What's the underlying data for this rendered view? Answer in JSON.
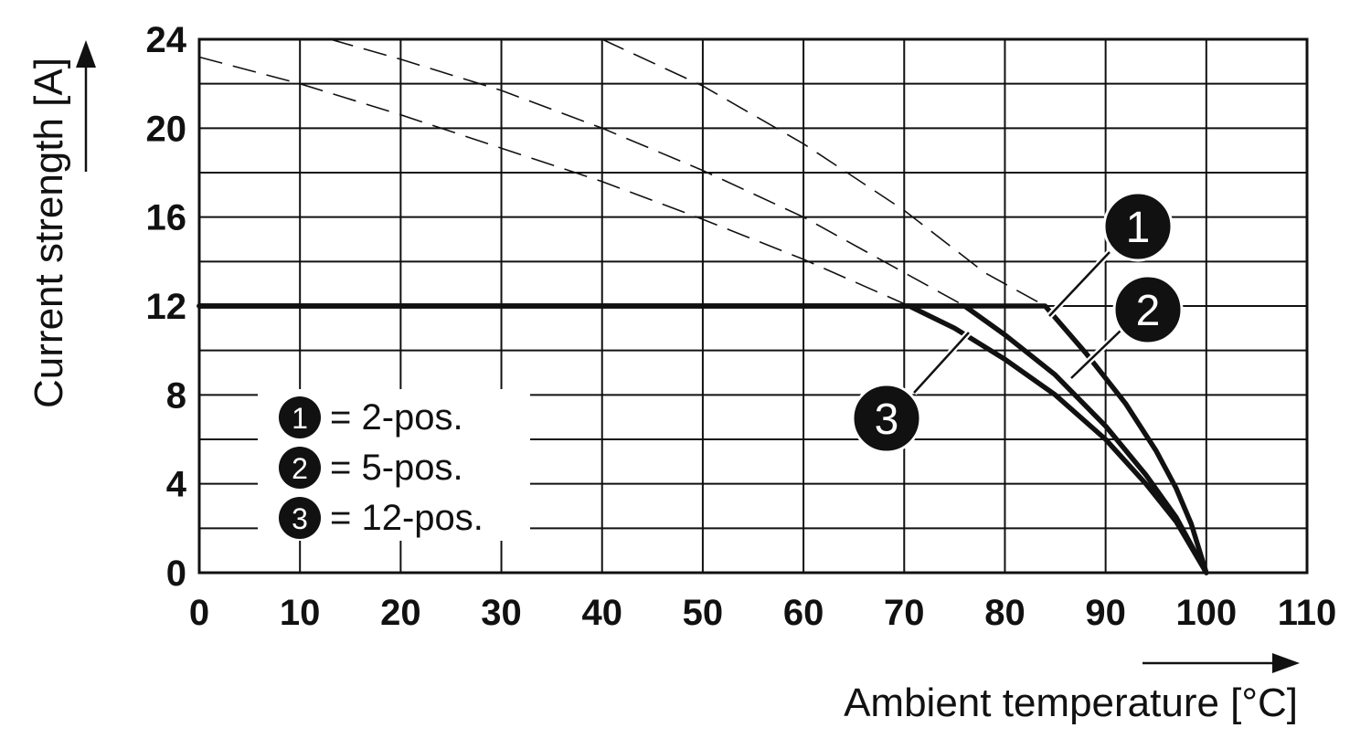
{
  "chart_data": {
    "type": "line",
    "xlabel": "Ambient temperature [°C]",
    "ylabel": "Current strength [A]",
    "xlim": [
      0,
      110
    ],
    "ylim": [
      0,
      24
    ],
    "x_ticks": [
      0,
      10,
      20,
      30,
      40,
      50,
      60,
      70,
      80,
      90,
      100,
      110
    ],
    "y_ticks": [
      0,
      4,
      8,
      12,
      16,
      20,
      24
    ],
    "grid": true,
    "legend": {
      "placement": "bottom-left",
      "entries": [
        {
          "marker": "1",
          "text": "= 2-pos."
        },
        {
          "marker": "2",
          "text": "= 5-pos."
        },
        {
          "marker": "3",
          "text": "= 12-pos."
        }
      ]
    },
    "series": [
      {
        "marker": "1",
        "solid": [
          [
            0,
            12
          ],
          [
            84,
            12
          ],
          [
            88,
            9.9
          ],
          [
            92,
            7.6
          ],
          [
            95,
            5.5
          ],
          [
            97,
            3.8
          ],
          [
            98.5,
            2.2
          ],
          [
            100,
            0
          ]
        ],
        "dashed": [
          [
            40,
            24
          ],
          [
            50,
            21.9
          ],
          [
            60,
            19.3
          ],
          [
            70,
            16.3
          ],
          [
            78,
            13.5
          ],
          [
            84,
            12
          ]
        ]
      },
      {
        "marker": "2",
        "solid": [
          [
            0,
            12
          ],
          [
            76,
            12
          ],
          [
            80,
            10.7
          ],
          [
            85,
            8.9
          ],
          [
            90,
            6.6
          ],
          [
            94,
            4.4
          ],
          [
            97,
            2.5
          ],
          [
            100,
            0
          ]
        ],
        "dashed": [
          [
            13,
            24
          ],
          [
            20,
            23.1
          ],
          [
            30,
            21.7
          ],
          [
            40,
            20
          ],
          [
            50,
            18.1
          ],
          [
            60,
            16
          ],
          [
            70,
            13.5
          ],
          [
            76,
            12
          ]
        ]
      },
      {
        "marker": "3",
        "solid": [
          [
            0,
            12
          ],
          [
            70.5,
            12
          ],
          [
            75,
            11
          ],
          [
            80,
            9.6
          ],
          [
            85,
            8
          ],
          [
            90,
            6
          ],
          [
            94,
            4
          ],
          [
            97,
            2.3
          ],
          [
            100,
            0
          ]
        ],
        "dashed": [
          [
            0,
            23.2
          ],
          [
            10,
            22
          ],
          [
            20,
            20.6
          ],
          [
            30,
            19.1
          ],
          [
            40,
            17.6
          ],
          [
            50,
            15.9
          ],
          [
            60,
            14.1
          ],
          [
            70.5,
            12
          ]
        ]
      }
    ]
  }
}
